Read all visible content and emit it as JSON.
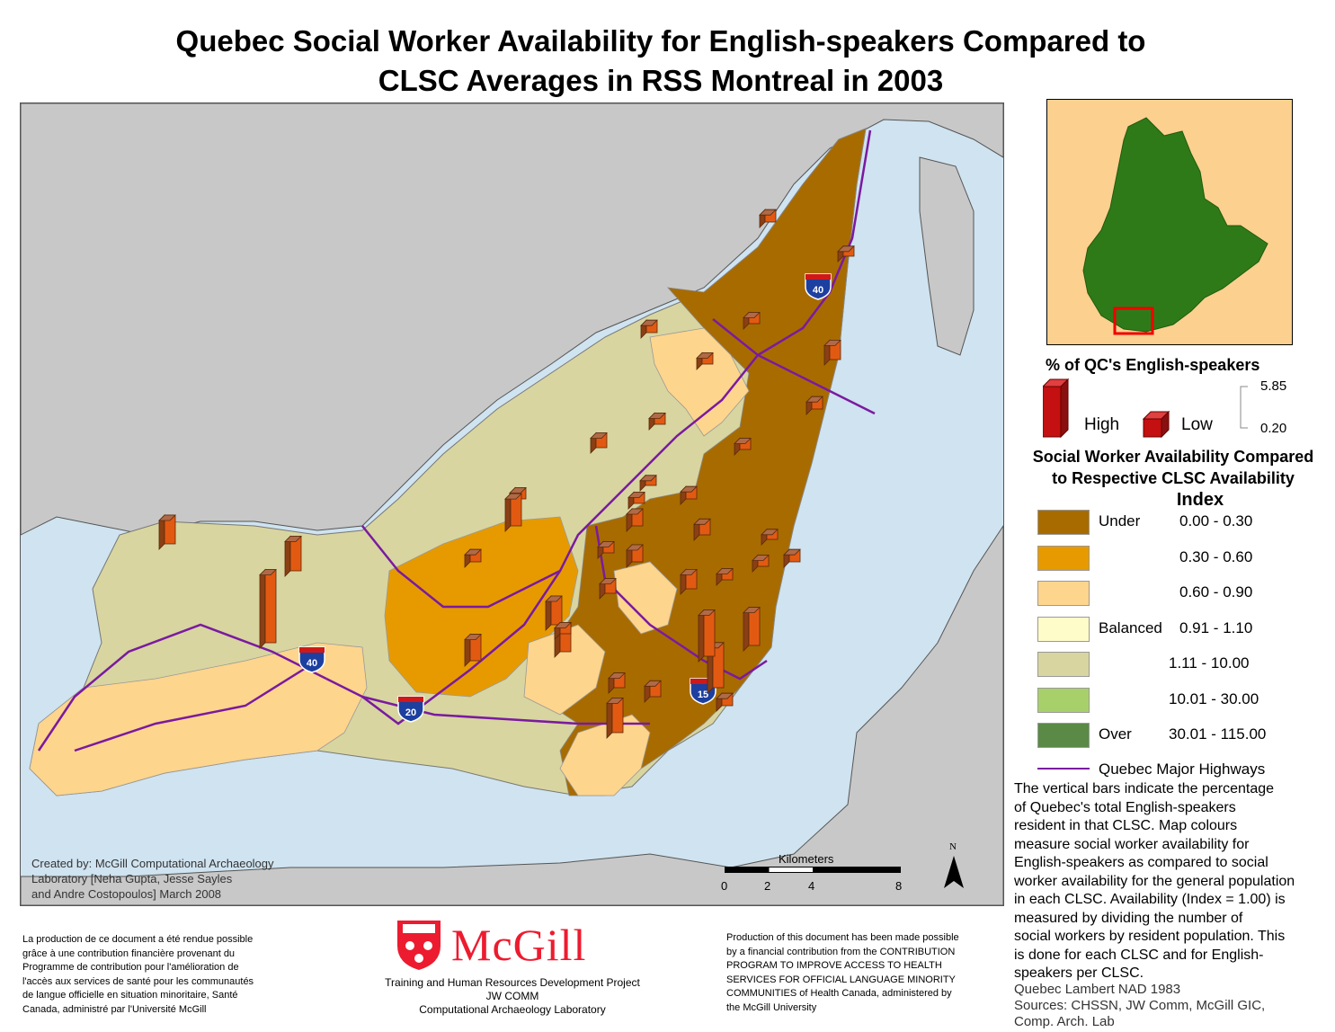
{
  "title_line1": "Quebec Social Worker Availability for English-speakers Compared to",
  "title_line2": "CLSC Averages in RSS Montreal in 2003",
  "credits": [
    "Created by: McGill Computational Archaeology",
    "Laboratory [Neha Gupta, Jesse Sayles",
    "and Andre Costopoulos] March 2008"
  ],
  "scalebar": {
    "title": "Kilometers",
    "ticks": [
      "0",
      "2",
      "4",
      "8"
    ]
  },
  "north_label": "N",
  "highways": {
    "shields": [
      "40",
      "40",
      "15",
      "20"
    ]
  },
  "legend_population": {
    "title": "% of QC's English-speakers",
    "high_label": "High",
    "low_label": "Low",
    "max_value": "5.85",
    "min_value": "0.20"
  },
  "legend_availability": {
    "title_line1": "Social Worker Availability Compared",
    "title_line2": "to Respective CLSC Availability",
    "title_line3": "Index",
    "classes": [
      {
        "label": "Under",
        "range": "0.00 - 0.30",
        "color": "#a86b00"
      },
      {
        "label": "",
        "range": "0.30 - 0.60",
        "color": "#e69a00"
      },
      {
        "label": "",
        "range": "0.60 - 0.90",
        "color": "#fed58c"
      },
      {
        "label": "Balanced",
        "range": "0.91 - 1.10",
        "color": "#fefcc8"
      },
      {
        "label": "",
        "range": "1.11 - 10.00",
        "color": "#d8d5a0"
      },
      {
        "label": "",
        "range": "10.01 - 30.00",
        "color": "#a8d06a"
      },
      {
        "label": "Over",
        "range": "30.01 - 115.00",
        "color": "#5a8a46"
      }
    ],
    "highway_label": "Quebec Major Highways"
  },
  "description": [
    "The vertical bars indicate the percentage",
    "of Quebec's total English-speakers",
    "resident in that CLSC. Map colours",
    "measure social worker availability for",
    "English-speakers as compared to social",
    "worker availability for the general population",
    "in each CLSC. Availability (Index = 1.00) is",
    "measured by dividing the number of",
    "social workers by resident population. This",
    "is done for each CLSC and for English-",
    "speakers per CLSC."
  ],
  "sources": [
    "Quebec Lambert NAD 1983",
    "Sources: CHSSN, JW Comm, McGill GIC,",
    "Comp. Arch. Lab"
  ],
  "french_note": [
    "La production de ce document a été rendue possible",
    "grâce à une contribution financière provenant du",
    "Programme de contribution pour l'amélioration de",
    "l'accès aux services de santé pour les communautés",
    "de langue officielle en situation minoritaire, Santé",
    "Canada, administré par l'Université McGill"
  ],
  "english_note": [
    "Production of this document has been made possible",
    "by a financial contribution from the CONTRIBUTION",
    "PROGRAM TO IMPROVE ACCESS TO HEALTH",
    "SERVICES FOR OFFICIAL LANGUAGE MINORITY",
    "COMMUNITIES of Health Canada, administered by",
    "the McGill University"
  ],
  "mcgill": {
    "name": "McGill",
    "sub": [
      "Training and Human Resources Development Project",
      "JW COMM",
      "Computational Archaeology Laboratory"
    ]
  },
  "colors": {
    "water": "#cfe3f0",
    "land_outside": "#c8c8c8",
    "highway": "#7a1aa0",
    "bar_front": "#e25a12",
    "bar_side": "#8a3f14",
    "inset_quebec": "#2f7a18",
    "inset_bg": "#fcd08e"
  },
  "bars": [
    {
      "pct": 0.6
    },
    {
      "pct": 0.4
    },
    {
      "pct": 0.5
    },
    {
      "pct": 0.6
    },
    {
      "pct": 0.5
    },
    {
      "pct": 1.2
    },
    {
      "pct": 0.6
    },
    {
      "pct": 0.5
    },
    {
      "pct": 0.8
    },
    {
      "pct": 0.5
    },
    {
      "pct": 0.4
    },
    {
      "pct": 0.6
    },
    {
      "pct": 0.5
    },
    {
      "pct": 0.6
    },
    {
      "pct": 0.5
    },
    {
      "pct": 1.0
    },
    {
      "pct": 0.4
    },
    {
      "pct": 0.9
    },
    {
      "pct": 0.5
    },
    {
      "pct": 0.5
    },
    {
      "pct": 0.5
    },
    {
      "pct": 1.0
    },
    {
      "pct": 0.8
    },
    {
      "pct": 2.0
    },
    {
      "pct": 1.8
    },
    {
      "pct": 1.2
    },
    {
      "pct": 2.0
    },
    {
      "pct": 0.8
    },
    {
      "pct": 2.5
    },
    {
      "pct": 2.0
    },
    {
      "pct": 2.5
    },
    {
      "pct": 3.4
    },
    {
      "pct": 2.8
    },
    {
      "pct": 3.5
    },
    {
      "pct": 5.8
    },
    {
      "pct": 0.6
    },
    {
      "pct": 0.5
    },
    {
      "pct": 0.9
    },
    {
      "pct": 0.6
    },
    {
      "pct": 2.3
    }
  ]
}
